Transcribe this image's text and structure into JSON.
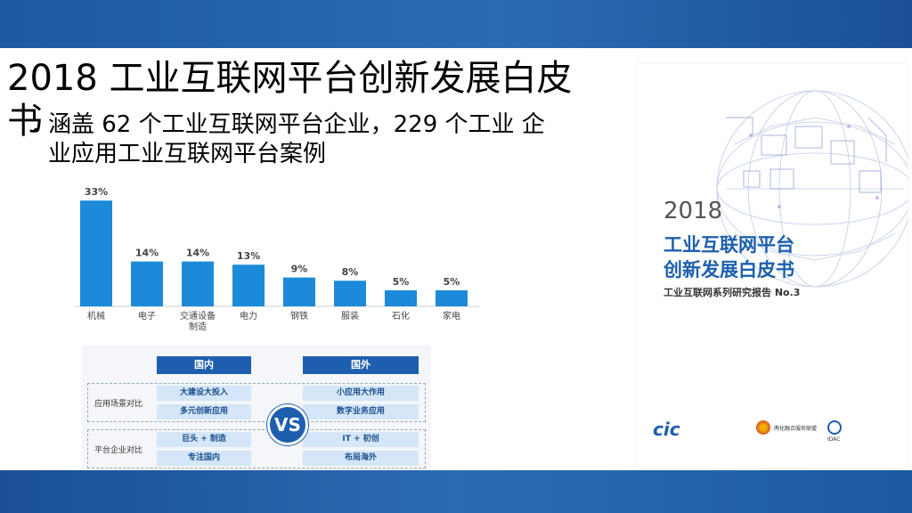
{
  "slide": {
    "title_line1": "2018 工业互联网平台创新发展白皮",
    "title_line2": "书",
    "bullet": "•",
    "subtitle": "涵盖 62 个工业互联网平台企业，229 个工业 企业应用工业互联网平台案例"
  },
  "colors": {
    "band": "#1c5aa3",
    "bar": "#1c8ad9",
    "accent": "#1d5fae"
  },
  "chart_data": {
    "type": "bar",
    "categories": [
      "机械",
      "电子",
      "交通设备\n制造",
      "电力",
      "钢铁",
      "服装",
      "石化",
      "家电"
    ],
    "values": [
      33,
      14,
      14,
      13,
      9,
      8,
      5,
      5
    ],
    "value_labels": [
      "33%",
      "14%",
      "14%",
      "13%",
      "9%",
      "8%",
      "5%",
      "5%"
    ],
    "ylim": [
      0,
      35
    ],
    "title": "",
    "xlabel": "",
    "ylabel": ""
  },
  "comparison": {
    "domestic": "国内",
    "foreign": "国外",
    "row1_label": "应用场景对比",
    "row2_label": "平台企业对比",
    "vs": "VS",
    "domestic_items": [
      "大建设大投入",
      "多元创新应用",
      "巨头 + 制造",
      "专注国内"
    ],
    "foreign_items": [
      "小应用大作用",
      "数字业务应用",
      "IT + 初创",
      "布局海外"
    ]
  },
  "cover": {
    "year": "2018",
    "title1": "工业互联网平台",
    "title2": "创新发展白皮书",
    "subtitle": "工业互联网系列研究报告 No.3",
    "logo1": "cic",
    "logo2": "两化融合服务联盟",
    "logo3": "IDAC"
  }
}
